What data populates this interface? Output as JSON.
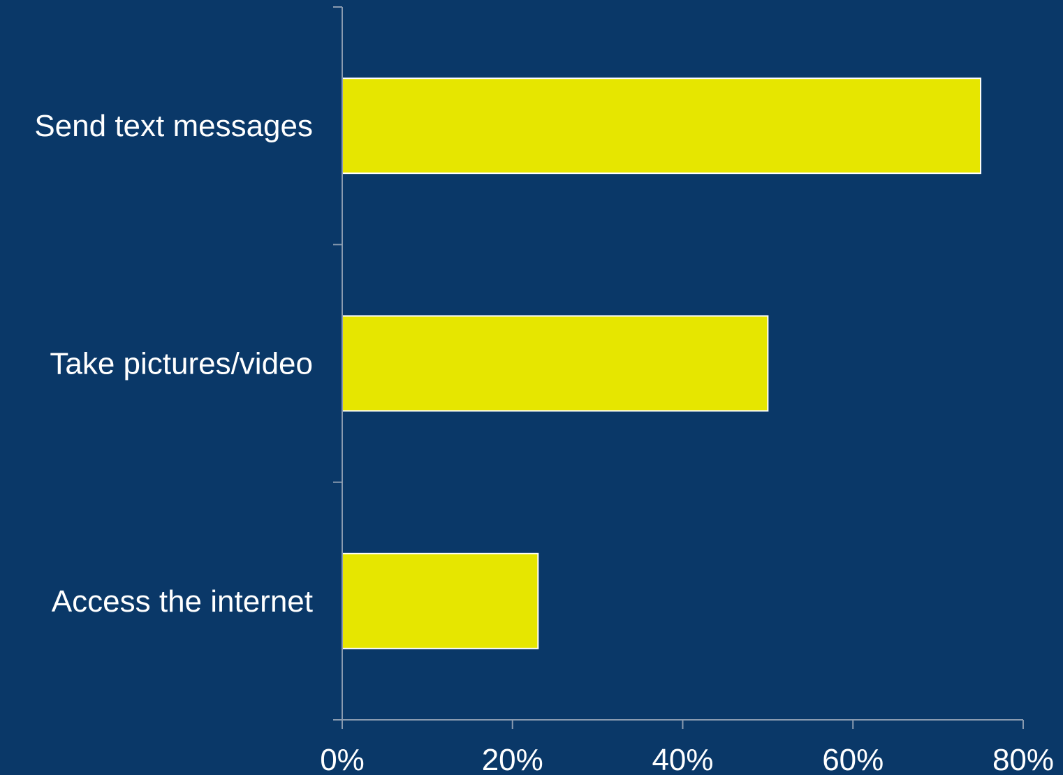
{
  "colors": {
    "background": "#0a3868",
    "bar_fill": "#e6e600",
    "bar_stroke": "#ffffff",
    "text": "#ffffff",
    "axis": "#8a9bb0"
  },
  "chart_data": {
    "type": "bar",
    "orientation": "horizontal",
    "categories": [
      "Send text messages",
      "Take pictures/video",
      "Access the internet"
    ],
    "values": [
      75,
      50,
      23
    ],
    "title": "",
    "xlabel": "",
    "ylabel": "",
    "xlim": [
      0,
      80
    ],
    "x_ticks": [
      0,
      20,
      40,
      60,
      80
    ],
    "x_tick_labels": [
      "0%",
      "20%",
      "40%",
      "60%",
      "80%"
    ],
    "grid": false,
    "legend": "none"
  }
}
